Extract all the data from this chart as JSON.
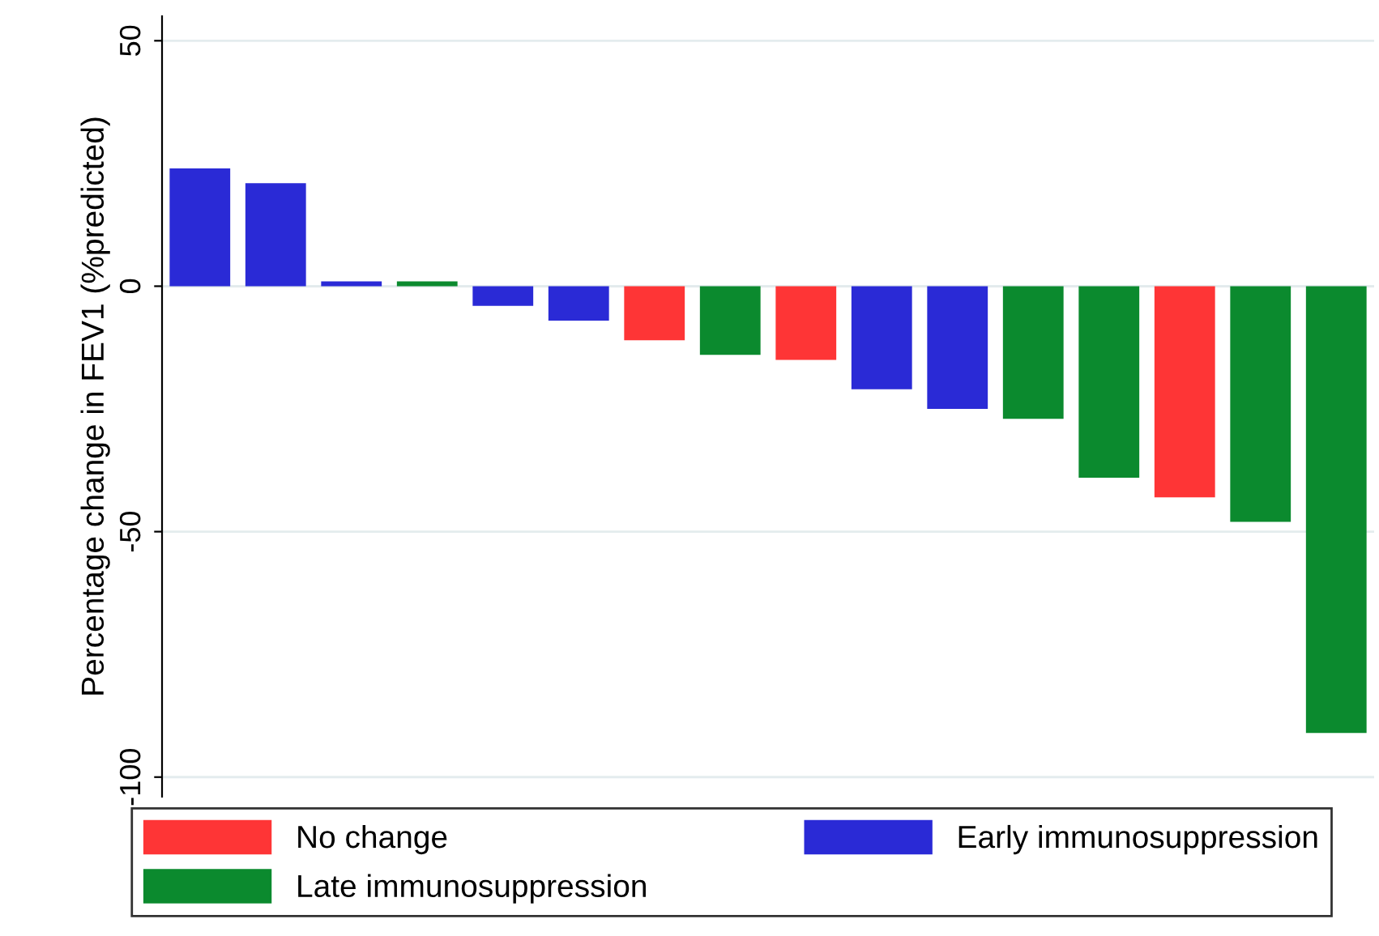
{
  "chart_data": {
    "type": "bar",
    "ylabel": "Percentage change in FEV1 (%predicted)",
    "categories": [
      null,
      null,
      null,
      null,
      null,
      null,
      null,
      null,
      null,
      null,
      null,
      null,
      null,
      null,
      null,
      null
    ],
    "series": [
      {
        "name": "No change",
        "color": "#fe3536",
        "values": [
          null,
          null,
          null,
          null,
          null,
          null,
          -11,
          null,
          -15,
          null,
          null,
          null,
          null,
          -43,
          null,
          null
        ]
      },
      {
        "name": "Early immunosuppression",
        "color": "#2a2ad6",
        "values": [
          24,
          21,
          1,
          null,
          -4,
          -7,
          null,
          null,
          null,
          -21,
          -25,
          null,
          null,
          null,
          null,
          null
        ]
      },
      {
        "name": "Late immunosuppression",
        "color": "#0b8a2e",
        "values": [
          null,
          null,
          null,
          1,
          null,
          null,
          null,
          -14,
          null,
          null,
          null,
          -27,
          -39,
          null,
          -48,
          -91
        ]
      }
    ],
    "ylim": [
      -104,
      55
    ],
    "yticks": [
      -100,
      -50,
      0,
      50
    ],
    "grid": "y",
    "legend": "bottom"
  }
}
